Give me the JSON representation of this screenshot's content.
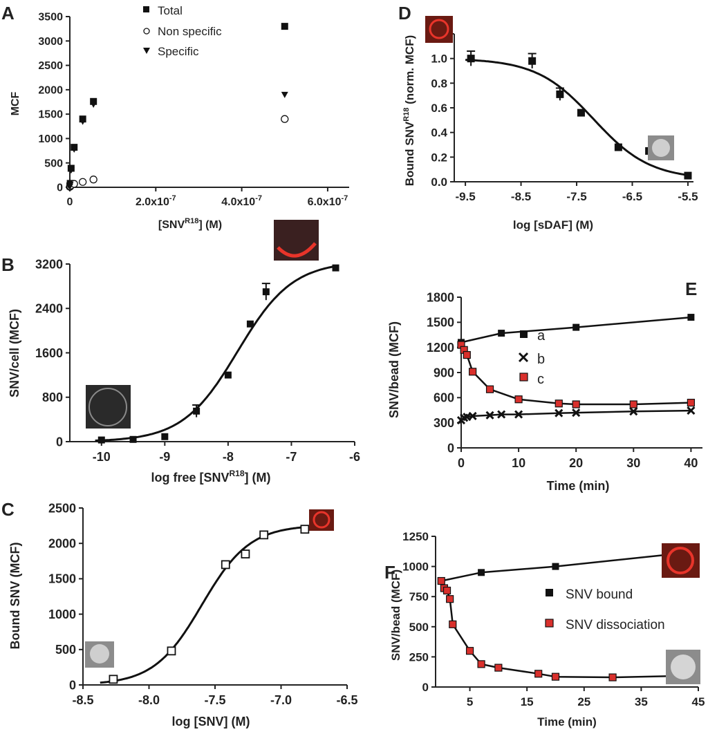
{
  "panels": [
    {
      "letter": "A",
      "xlabel": "[SNV",
      "xlabel_sup": "R18",
      "xlabel_tail": "] (M)",
      "ylabel": "MCF",
      "x_ticks": [
        "0",
        "2.0x10",
        "4.0x10",
        "6.0x10"
      ],
      "x_tick_exp": "-7",
      "y_ticks": [
        "0",
        "500",
        "1000",
        "1500",
        "2000",
        "2500",
        "3000",
        "3500"
      ],
      "legend": [
        {
          "label": "Total",
          "marker": "filled-square"
        },
        {
          "label": "Non specific",
          "marker": "open-circle"
        },
        {
          "label": "Specific",
          "marker": "filled-triangle"
        }
      ]
    },
    {
      "letter": "B",
      "xlabel": "log free [SNV",
      "xlabel_sup": "R18",
      "xlabel_tail": "] (M)",
      "ylabel": "SNV/cell (MCF)",
      "x_ticks": [
        "-10",
        "-9",
        "-8",
        "-7",
        "-6"
      ],
      "y_ticks": [
        "0",
        "800",
        "1600",
        "2400",
        "3200"
      ]
    },
    {
      "letter": "C",
      "xlabel": "log [SNV] (M)",
      "ylabel": "Bound SNV (MCF)",
      "x_ticks": [
        "-8.5",
        "-8.0",
        "-7.5",
        "-7.0",
        "-6.5"
      ],
      "y_ticks": [
        "0",
        "500",
        "1000",
        "1500",
        "2000",
        "2500"
      ]
    },
    {
      "letter": "D",
      "xlabel": "log [sDAF] (M)",
      "ylabel": "Bound SNV",
      "ylabel_sup": "R18",
      "ylabel_tail": " (norm. MCF)",
      "x_ticks": [
        "-9.5",
        "-8.5",
        "-7.5",
        "-6.5",
        "-5.5"
      ],
      "y_ticks": [
        "0.0",
        "0.2",
        "0.4",
        "0.6",
        "0.8",
        "1.0",
        "1.2"
      ]
    },
    {
      "letter": "E",
      "xlabel": "Time (min)",
      "ylabel": "SNV/bead (MCF)",
      "x_ticks": [
        "0",
        "10",
        "20",
        "30",
        "40"
      ],
      "y_ticks": [
        "0",
        "300",
        "600",
        "900",
        "1200",
        "1500",
        "1800"
      ],
      "legend": [
        {
          "label": "a",
          "marker": "filled-square"
        },
        {
          "label": "b",
          "marker": "cross"
        },
        {
          "label": "c",
          "marker": "red-square"
        }
      ]
    },
    {
      "letter": "F",
      "xlabel": "Time (min)",
      "ylabel": "SNV/bead (MCF)",
      "x_ticks": [
        "5",
        "15",
        "25",
        "35",
        "45"
      ],
      "y_ticks": [
        "0",
        "250",
        "500",
        "750",
        "1000",
        "1250"
      ],
      "legend": [
        {
          "label": "SNV bound",
          "marker": "filled-square"
        },
        {
          "label": "SNV dissociation",
          "marker": "red-square"
        }
      ]
    }
  ],
  "chart_data": [
    {
      "panel": "A",
      "type": "scatter",
      "xlim": [
        0,
        6.5e-07
      ],
      "ylim": [
        0,
        3500
      ],
      "series": [
        {
          "name": "Total",
          "marker": "filled-square",
          "x": [
            1e-10,
            1e-09,
            3e-09,
            1e-08,
            3e-08,
            5.5e-08,
            5e-07
          ],
          "y": [
            30,
            80,
            390,
            820,
            1400,
            1760,
            3300
          ]
        },
        {
          "name": "Non specific",
          "marker": "open-circle",
          "x": [
            1e-10,
            1e-09,
            3e-09,
            1e-08,
            3e-08,
            5.5e-08,
            5e-07
          ],
          "y": [
            10,
            20,
            40,
            70,
            110,
            160,
            1400
          ]
        },
        {
          "name": "Specific",
          "marker": "filled-triangle",
          "x": [
            1e-10,
            1e-09,
            3e-09,
            1e-08,
            3e-08,
            5.5e-08,
            5e-07
          ],
          "y": [
            20,
            60,
            350,
            780,
            1350,
            1700,
            1900
          ]
        }
      ]
    },
    {
      "panel": "B",
      "type": "scatter",
      "xlim": [
        -10.5,
        -6
      ],
      "ylim": [
        0,
        3200
      ],
      "points": [
        {
          "x": -10,
          "y": 30
        },
        {
          "x": -9.5,
          "y": 40
        },
        {
          "x": -9,
          "y": 90
        },
        {
          "x": -8.5,
          "y": 550
        },
        {
          "x": -8,
          "y": 1200
        },
        {
          "x": -7.65,
          "y": 2120
        },
        {
          "x": -7.4,
          "y": 2700
        },
        {
          "x": -6.3,
          "y": 3130
        }
      ],
      "error_bars": [
        {
          "x": -8.5,
          "err": 110
        },
        {
          "x": -7.4,
          "err": 150
        }
      ],
      "fit": {
        "model": "sigmoid",
        "bottom": 0,
        "top": 3250,
        "logEC50": -7.85,
        "hill": 1.0
      }
    },
    {
      "panel": "C",
      "type": "scatter",
      "xlim": [
        -8.5,
        -6.5
      ],
      "ylim": [
        0,
        2500
      ],
      "points": [
        {
          "x": -8.27,
          "y": 80
        },
        {
          "x": -7.83,
          "y": 480
        },
        {
          "x": -7.42,
          "y": 1700
        },
        {
          "x": -7.27,
          "y": 1850
        },
        {
          "x": -7.13,
          "y": 2120
        },
        {
          "x": -6.82,
          "y": 2200
        }
      ],
      "fit": {
        "model": "sigmoid",
        "bottom": 0,
        "top": 2260,
        "logEC50": -7.6,
        "hill": 2.4
      }
    },
    {
      "panel": "D",
      "type": "scatter",
      "xlim": [
        -9.7,
        -5.4
      ],
      "ylim": [
        0,
        1.2
      ],
      "points": [
        {
          "x": -9.4,
          "y": 1.0
        },
        {
          "x": -8.3,
          "y": 0.98
        },
        {
          "x": -7.8,
          "y": 0.71
        },
        {
          "x": -7.42,
          "y": 0.56
        },
        {
          "x": -6.75,
          "y": 0.28
        },
        {
          "x": -6.2,
          "y": 0.25
        },
        {
          "x": -5.5,
          "y": 0.05
        }
      ],
      "error_bars": [
        {
          "x": -9.4,
          "err": 0.06
        },
        {
          "x": -8.3,
          "err": 0.06
        },
        {
          "x": -7.8,
          "err": 0.05
        }
      ],
      "fit": {
        "model": "sigmoid",
        "bottom": 0.02,
        "top": 1.0,
        "logEC50": -7.2,
        "hill": -0.85
      }
    },
    {
      "panel": "E",
      "type": "line",
      "xlim": [
        0,
        42
      ],
      "ylim": [
        0,
        1800
      ],
      "series": [
        {
          "name": "a",
          "marker": "filled-square",
          "x": [
            0,
            7,
            20,
            40
          ],
          "y": [
            1260,
            1370,
            1440,
            1560
          ]
        },
        {
          "name": "b",
          "marker": "cross",
          "x": [
            0,
            0.5,
            1,
            2,
            5,
            7,
            10,
            17,
            20,
            30,
            40
          ],
          "y": [
            330,
            360,
            370,
            380,
            390,
            400,
            400,
            415,
            420,
            435,
            445
          ]
        },
        {
          "name": "c",
          "marker": "red-square",
          "x": [
            0,
            0.5,
            1,
            2,
            5,
            10,
            17,
            20,
            30,
            40
          ],
          "y": [
            1230,
            1170,
            1110,
            910,
            700,
            580,
            530,
            520,
            520,
            540
          ]
        }
      ]
    },
    {
      "panel": "F",
      "type": "line",
      "xlim": [
        -1,
        45
      ],
      "ylim": [
        0,
        1250
      ],
      "series": [
        {
          "name": "SNV bound",
          "marker": "filled-square",
          "x": [
            0,
            7,
            20,
            40
          ],
          "y": [
            880,
            950,
            1000,
            1100
          ]
        },
        {
          "name": "SNV dissociation",
          "marker": "red-square",
          "x": [
            0,
            0.5,
            1,
            1.5,
            2,
            5,
            7,
            10,
            17,
            20,
            30,
            40
          ],
          "y": [
            880,
            820,
            800,
            730,
            520,
            300,
            190,
            160,
            110,
            85,
            80,
            90
          ]
        }
      ]
    }
  ],
  "colors": {
    "axis": "#222222",
    "marker": "#111111",
    "red_marker": "#d9302c",
    "image_red": "#e8342a",
    "image_gray": "#9a9a9a"
  }
}
